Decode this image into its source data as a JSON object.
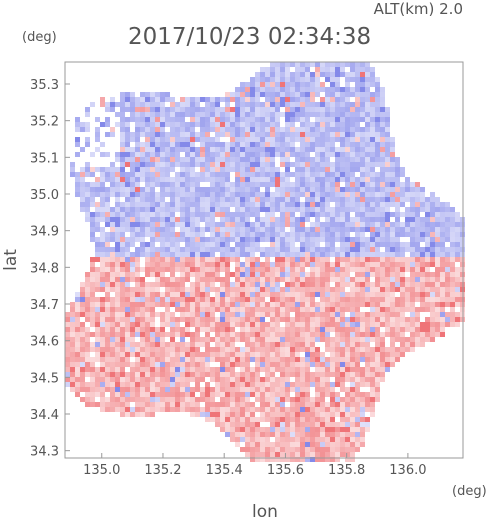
{
  "header": {
    "altitude_label": "ALT(km) 2.0",
    "timestamp": "2017/10/23 02:34:38"
  },
  "chart_data": {
    "type": "heatmap",
    "title": "2017/10/23 02:34:38",
    "subtitle": "ALT(km) 2.0",
    "xlabel": "lon",
    "ylabel": "lat",
    "x_unit": "(deg)",
    "y_unit": "(deg)",
    "xlim": [
      134.88,
      136.18
    ],
    "ylim": [
      34.28,
      35.36
    ],
    "x_ticks": [
      "135.0",
      "135.2",
      "135.4",
      "135.6",
      "135.8",
      "136.0"
    ],
    "y_ticks": [
      "35.3",
      "35.2",
      "35.1",
      "35.0",
      "34.9",
      "34.8",
      "34.7",
      "34.6",
      "34.5",
      "34.4",
      "34.3"
    ],
    "radar_center": {
      "lon": 135.52,
      "lat": 34.82
    },
    "radar_range_deg": 0.62,
    "color_scale": {
      "negative": "#4f56e0",
      "zero": "#ffffff",
      "positive": "#e8383e"
    },
    "grid": false
  }
}
